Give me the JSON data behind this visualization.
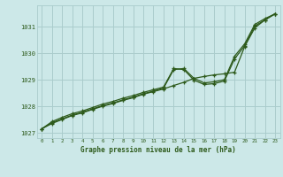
{
  "title": "Graphe pression niveau de la mer (hPa)",
  "bg_color": "#cce8e8",
  "grid_color": "#aacccc",
  "line_color": "#2d5a1b",
  "xlim": [
    -0.5,
    23.5
  ],
  "ylim": [
    1026.8,
    1031.8
  ],
  "xticks": [
    0,
    1,
    2,
    3,
    4,
    5,
    6,
    7,
    8,
    9,
    10,
    11,
    12,
    13,
    14,
    15,
    16,
    17,
    18,
    19,
    20,
    21,
    22,
    23
  ],
  "yticks": [
    1027,
    1028,
    1029,
    1030,
    1031
  ],
  "series": [
    [
      1027.15,
      1027.35,
      1027.5,
      1027.65,
      1027.75,
      1027.88,
      1028.0,
      1028.1,
      1028.22,
      1028.32,
      1028.45,
      1028.55,
      1028.65,
      1028.78,
      1028.9,
      1029.05,
      1029.12,
      1029.18,
      1029.22,
      1029.28,
      1030.25,
      1030.95,
      1031.25,
      1031.48
    ],
    [
      1027.15,
      1027.38,
      1027.52,
      1027.67,
      1027.77,
      1027.9,
      1028.02,
      1028.12,
      1028.24,
      1028.34,
      1028.47,
      1028.57,
      1028.68,
      1029.38,
      1029.42,
      1029.05,
      1028.88,
      1028.92,
      1029.0,
      1029.88,
      1030.35,
      1031.08,
      1031.3,
      1031.48
    ],
    [
      1027.15,
      1027.42,
      1027.58,
      1027.72,
      1027.82,
      1027.95,
      1028.08,
      1028.18,
      1028.3,
      1028.4,
      1028.52,
      1028.62,
      1028.72,
      1029.42,
      1029.38,
      1028.98,
      1028.82,
      1028.85,
      1028.95,
      1029.78,
      1030.28,
      1031.02,
      1031.25,
      1031.48
    ]
  ]
}
